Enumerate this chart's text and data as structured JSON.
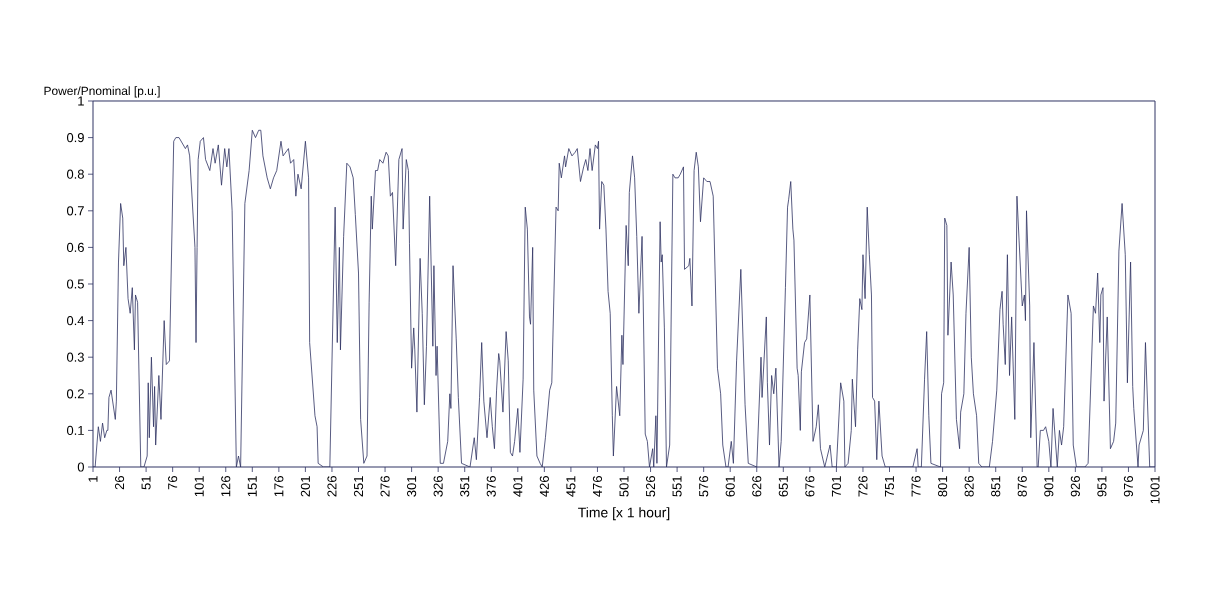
{
  "chart_data": {
    "type": "line",
    "xlabel": "Time [x 1 hour]",
    "ylabel": "Power/Pnominal [p.u.]",
    "color": "#2e3262",
    "xlim": [
      1,
      1001
    ],
    "ylim": [
      0,
      1
    ],
    "xticks": [
      1,
      26,
      51,
      76,
      101,
      126,
      151,
      176,
      201,
      226,
      251,
      276,
      301,
      326,
      351,
      376,
      401,
      426,
      451,
      476,
      501,
      526,
      551,
      576,
      601,
      626,
      651,
      676,
      701,
      726,
      751,
      776,
      801,
      826,
      851,
      876,
      901,
      926,
      951,
      976,
      1001
    ],
    "yticks": [
      0,
      0.1,
      0.2,
      0.3,
      0.4,
      0.5,
      0.6,
      0.7,
      0.8,
      0.9,
      1
    ],
    "x": [
      1,
      3,
      6,
      8,
      10,
      12,
      14,
      15,
      16,
      18,
      22,
      23,
      25,
      27,
      29,
      30,
      32,
      34,
      36,
      38,
      40,
      41,
      43,
      46,
      49,
      52,
      53,
      54,
      56,
      58,
      59,
      60,
      63,
      65,
      68,
      70,
      73,
      77,
      79,
      82,
      88,
      90,
      92,
      97,
      98,
      99,
      100,
      102,
      105,
      107,
      111,
      114,
      116,
      119,
      122,
      125,
      127,
      129,
      132,
      136,
      138,
      140,
      144,
      148,
      151,
      154,
      157,
      159,
      161,
      165,
      168,
      171,
      174,
      178,
      180,
      185,
      187,
      190,
      192,
      194,
      197,
      201,
      204,
      205,
      210,
      212,
      213,
      218,
      224,
      229,
      231,
      233,
      234,
      237,
      240,
      243,
      246,
      248,
      251,
      253,
      256,
      259,
      261,
      263,
      264,
      267,
      269,
      271,
      274,
      277,
      279,
      281,
      283,
      286,
      289,
      292,
      293,
      296,
      298,
      299,
      301,
      303,
      304,
      306,
      309,
      311,
      313,
      315,
      318,
      321,
      322,
      324,
      325,
      328,
      331,
      335,
      337,
      338,
      340,
      343,
      345,
      348,
      356,
      360,
      362,
      365,
      367,
      369,
      372,
      375,
      377,
      379,
      381,
      383,
      384,
      387,
      390,
      392,
      394,
      396,
      398,
      401,
      403,
      406,
      408,
      410,
      412,
      413,
      415,
      416,
      419,
      422,
      424,
      427,
      431,
      433,
      437,
      439,
      440,
      442,
      445,
      446,
      449,
      452,
      455,
      457,
      460,
      463,
      465,
      467,
      469,
      471,
      474,
      476,
      477,
      478,
      480,
      482,
      484,
      486,
      488,
      490,
      491,
      494,
      497,
      499,
      500,
      503,
      505,
      506,
      509,
      511,
      513,
      515,
      518,
      519,
      521,
      523,
      525,
      528,
      529,
      531,
      532,
      535,
      536,
      537,
      539,
      541,
      544,
      547,
      549,
      552,
      554,
      557,
      558,
      562,
      563,
      565,
      567,
      569,
      571,
      573,
      576,
      579,
      582,
      585,
      589,
      592,
      594,
      597,
      599,
      602,
      604,
      607,
      611,
      615,
      618,
      626,
      630,
      631,
      635,
      636,
      638,
      640,
      642,
      644,
      647,
      649,
      653,
      655,
      656,
      658,
      660,
      661,
      664,
      665,
      667,
      668,
      671,
      673,
      676,
      679,
      682,
      684,
      686,
      690,
      695,
      697,
      701,
      705,
      708,
      709,
      712,
      715,
      716,
      719,
      721,
      723,
      725,
      726,
      728,
      730,
      732,
      734,
      735,
      737,
      739,
      741,
      744,
      747,
      773,
      777,
      778,
      781,
      784,
      786,
      788,
      790,
      799,
      800,
      802,
      803,
      805,
      806,
      809,
      811,
      814,
      817,
      818,
      821,
      823,
      826,
      828,
      830,
      833,
      835,
      838,
      845,
      848,
      852,
      855,
      857,
      858,
      860,
      862,
      864,
      866,
      869,
      871,
      873,
      876,
      878,
      879,
      880,
      883,
      884,
      887,
      890,
      891,
      893,
      896,
      898,
      901,
      903,
      905,
      909,
      911,
      913,
      915,
      919,
      922,
      924,
      927,
      935,
      938,
      943,
      945,
      947,
      949,
      950,
      952,
      953,
      956,
      959,
      962,
      964,
      967,
      970,
      973,
      975,
      978,
      980,
      981,
      985,
      986,
      990,
      992,
      996,
      1001
    ],
    "values": [
      0,
      0,
      0.11,
      0.07,
      0.12,
      0.08,
      0.1,
      0.1,
      0.19,
      0.21,
      0.13,
      0.18,
      0.56,
      0.72,
      0.68,
      0.55,
      0.6,
      0.46,
      0.42,
      0.49,
      0.32,
      0.47,
      0.45,
      0,
      0,
      0.03,
      0.23,
      0.08,
      0.3,
      0.11,
      0.22,
      0.06,
      0.25,
      0.13,
      0.4,
      0.28,
      0.29,
      0.89,
      0.9,
      0.9,
      0.87,
      0.88,
      0.85,
      0.6,
      0.34,
      0.6,
      0.84,
      0.89,
      0.9,
      0.84,
      0.81,
      0.87,
      0.83,
      0.88,
      0.77,
      0.87,
      0.82,
      0.87,
      0.7,
      0,
      0.03,
      0,
      0.72,
      0.81,
      0.92,
      0.9,
      0.92,
      0.92,
      0.85,
      0.79,
      0.76,
      0.79,
      0.81,
      0.89,
      0.85,
      0.87,
      0.83,
      0.84,
      0.74,
      0.8,
      0.76,
      0.89,
      0.79,
      0.34,
      0.14,
      0.11,
      0.01,
      0,
      0,
      0.71,
      0.34,
      0.6,
      0.32,
      0.63,
      0.83,
      0.82,
      0.79,
      0.69,
      0.53,
      0.13,
      0.01,
      0.03,
      0.45,
      0.74,
      0.65,
      0.81,
      0.81,
      0.84,
      0.83,
      0.86,
      0.85,
      0.74,
      0.75,
      0.55,
      0.84,
      0.87,
      0.65,
      0.84,
      0.81,
      0.61,
      0.27,
      0.38,
      0.32,
      0.15,
      0.57,
      0.42,
      0.17,
      0.33,
      0.74,
      0.33,
      0.55,
      0.25,
      0.33,
      0.01,
      0.01,
      0.07,
      0.2,
      0.16,
      0.55,
      0.35,
      0.19,
      0.01,
      0,
      0.08,
      0.02,
      0.19,
      0.34,
      0.18,
      0.08,
      0.19,
      0.11,
      0.05,
      0.21,
      0.31,
      0.29,
      0.15,
      0.37,
      0.29,
      0.04,
      0.03,
      0.07,
      0.16,
      0.04,
      0.24,
      0.71,
      0.65,
      0.41,
      0.39,
      0.6,
      0.21,
      0.03,
      0.01,
      0,
      0.08,
      0.21,
      0.23,
      0.71,
      0.7,
      0.83,
      0.79,
      0.85,
      0.82,
      0.87,
      0.85,
      0.86,
      0.87,
      0.78,
      0.82,
      0.84,
      0.81,
      0.87,
      0.81,
      0.88,
      0.87,
      0.89,
      0.65,
      0.78,
      0.77,
      0.65,
      0.48,
      0.42,
      0.14,
      0.03,
      0.22,
      0.14,
      0.36,
      0.28,
      0.66,
      0.55,
      0.75,
      0.85,
      0.79,
      0.63,
      0.42,
      0.63,
      0.47,
      0.09,
      0.07,
      0,
      0.05,
      0,
      0.14,
      0.01,
      0.67,
      0.56,
      0.58,
      0.38,
      0,
      0.06,
      0.8,
      0.79,
      0.79,
      0.8,
      0.82,
      0.54,
      0.55,
      0.57,
      0.44,
      0.81,
      0.86,
      0.82,
      0.67,
      0.79,
      0.78,
      0.78,
      0.74,
      0.27,
      0.2,
      0.06,
      0,
      0,
      0.07,
      0.01,
      0.29,
      0.54,
      0.17,
      0.01,
      0,
      0.3,
      0.19,
      0.41,
      0.23,
      0.06,
      0.25,
      0.2,
      0.27,
      0,
      0.07,
      0.49,
      0.71,
      0.73,
      0.78,
      0.65,
      0.62,
      0.27,
      0.25,
      0.1,
      0.26,
      0.34,
      0.35,
      0.47,
      0.07,
      0.11,
      0.17,
      0.05,
      0,
      0.06,
      0,
      0,
      0.23,
      0.18,
      0,
      0.01,
      0.1,
      0.24,
      0.11,
      0.32,
      0.46,
      0.43,
      0.58,
      0.46,
      0.71,
      0.58,
      0.47,
      0.19,
      0.18,
      0.02,
      0.18,
      0.03,
      0,
      0,
      0.05,
      0,
      0,
      0.24,
      0.37,
      0.14,
      0.01,
      0,
      0.2,
      0.23,
      0.68,
      0.66,
      0.36,
      0.56,
      0.47,
      0.13,
      0.05,
      0.15,
      0.2,
      0.42,
      0.6,
      0.3,
      0.2,
      0.14,
      0.01,
      0,
      0,
      0.07,
      0.21,
      0.43,
      0.48,
      0.39,
      0.28,
      0.58,
      0.25,
      0.41,
      0.13,
      0.74,
      0.62,
      0.44,
      0.47,
      0.4,
      0.7,
      0.44,
      0.08,
      0.34,
      0,
      0,
      0.1,
      0.1,
      0.11,
      0.07,
      0,
      0.16,
      0,
      0.1,
      0.06,
      0.11,
      0.47,
      0.42,
      0.06,
      0,
      0,
      0.01,
      0.44,
      0.42,
      0.53,
      0.34,
      0.47,
      0.49,
      0.18,
      0.41,
      0.05,
      0.07,
      0.12,
      0.59,
      0.72,
      0.58,
      0.23,
      0.56,
      0.22,
      0.16,
      0,
      0.06,
      0.1,
      0.34,
      0,
      0
    ]
  }
}
